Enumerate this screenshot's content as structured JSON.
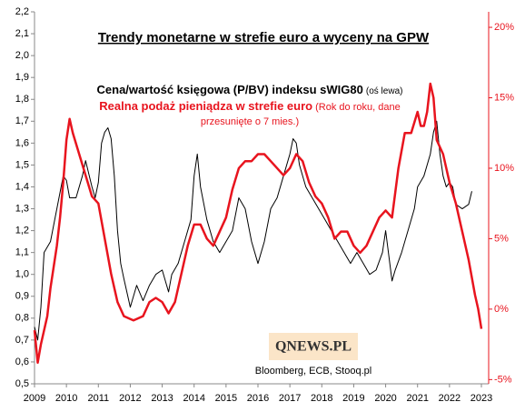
{
  "chart_data": {
    "type": "line",
    "title": "Trendy monetarne w strefie euro a wyceny na GPW",
    "annotations": [
      "(oś lewa)",
      "(Rok do roku, dane",
      "przesunięte o 7 mies.)"
    ],
    "logo": "QNEWS.PL",
    "source": "Bloomberg, ECB, Stooq.pl",
    "xlim": [
      2009,
      2023
    ],
    "xticks": [
      2009,
      2010,
      2011,
      2012,
      2013,
      2014,
      2015,
      2016,
      2017,
      2018,
      2019,
      2020,
      2021,
      2022,
      2023
    ],
    "ylim": [
      0.5,
      2.2
    ],
    "yticks": [
      {
        "value": 0.5,
        "label": "0,5"
      },
      {
        "value": 0.6,
        "label": "0,6"
      },
      {
        "value": 0.7,
        "label": "0,7"
      },
      {
        "value": 0.8,
        "label": "0,8"
      },
      {
        "value": 0.9,
        "label": "0,9"
      },
      {
        "value": 1.0,
        "label": "1,0"
      },
      {
        "value": 1.1,
        "label": "1,1"
      },
      {
        "value": 1.2,
        "label": "1,2"
      },
      {
        "value": 1.3,
        "label": "1,3"
      },
      {
        "value": 1.4,
        "label": "1,4"
      },
      {
        "value": 1.5,
        "label": "1,5"
      },
      {
        "value": 1.6,
        "label": "1,6"
      },
      {
        "value": 1.7,
        "label": "1,7"
      },
      {
        "value": 1.8,
        "label": "1,8"
      },
      {
        "value": 1.9,
        "label": "1,9"
      },
      {
        "value": 2.0,
        "label": "2,0"
      },
      {
        "value": 2.1,
        "label": "2,1"
      },
      {
        "value": 2.2,
        "label": "2,2"
      }
    ],
    "y2lim": [
      -5.3,
      21.1
    ],
    "y2ticks": [
      {
        "value": -5,
        "label": "-5%"
      },
      {
        "value": 0,
        "label": "0%"
      },
      {
        "value": 5,
        "label": "5%"
      },
      {
        "value": 10,
        "label": "10%"
      },
      {
        "value": 15,
        "label": "15%"
      },
      {
        "value": 20,
        "label": "20%"
      }
    ],
    "series": [
      {
        "name": "Cena/wartość księgowa (P/BV) indeksu sWIG80",
        "color": "#000000",
        "axis": "y",
        "x": [
          2009.0,
          2009.1,
          2009.2,
          2009.3,
          2009.5,
          2009.7,
          2009.9,
          2010.0,
          2010.1,
          2010.3,
          2010.5,
          2010.6,
          2010.8,
          2010.9,
          2011.0,
          2011.1,
          2011.2,
          2011.3,
          2011.4,
          2011.5,
          2011.6,
          2011.7,
          2011.8,
          2012.0,
          2012.2,
          2012.4,
          2012.6,
          2012.8,
          2013.0,
          2013.2,
          2013.3,
          2013.5,
          2013.7,
          2013.9,
          2014.0,
          2014.1,
          2014.2,
          2014.4,
          2014.6,
          2014.8,
          2015.0,
          2015.2,
          2015.4,
          2015.6,
          2015.8,
          2016.0,
          2016.2,
          2016.4,
          2016.6,
          2016.8,
          2017.0,
          2017.1,
          2017.2,
          2017.3,
          2017.5,
          2017.7,
          2017.9,
          2018.1,
          2018.3,
          2018.5,
          2018.7,
          2018.9,
          2019.1,
          2019.3,
          2019.5,
          2019.7,
          2019.9,
          2020.0,
          2020.2,
          2020.3,
          2020.5,
          2020.7,
          2020.9,
          2021.0,
          2021.2,
          2021.4,
          2021.5,
          2021.6,
          2021.7,
          2021.8,
          2021.9,
          2022.0,
          2022.1,
          2022.2,
          2022.4,
          2022.6,
          2022.7
        ],
        "values": [
          0.76,
          0.7,
          0.85,
          1.1,
          1.15,
          1.3,
          1.45,
          1.43,
          1.35,
          1.35,
          1.45,
          1.52,
          1.4,
          1.35,
          1.42,
          1.6,
          1.65,
          1.67,
          1.62,
          1.45,
          1.2,
          1.05,
          0.98,
          0.85,
          0.95,
          0.88,
          0.95,
          1.0,
          1.02,
          0.92,
          1.0,
          1.05,
          1.15,
          1.25,
          1.45,
          1.55,
          1.4,
          1.25,
          1.15,
          1.1,
          1.15,
          1.2,
          1.35,
          1.3,
          1.15,
          1.05,
          1.15,
          1.3,
          1.35,
          1.45,
          1.55,
          1.62,
          1.6,
          1.5,
          1.4,
          1.35,
          1.3,
          1.25,
          1.2,
          1.15,
          1.1,
          1.05,
          1.1,
          1.05,
          1.0,
          1.02,
          1.1,
          1.2,
          0.97,
          1.02,
          1.1,
          1.2,
          1.3,
          1.4,
          1.45,
          1.55,
          1.65,
          1.7,
          1.55,
          1.45,
          1.4,
          1.42,
          1.4,
          1.32,
          1.3,
          1.32,
          1.38
        ]
      },
      {
        "name": "Realna podaż pieniądza w strefie euro",
        "color": "#e8141e",
        "axis": "y2",
        "x": [
          2009.0,
          2009.1,
          2009.2,
          2009.4,
          2009.5,
          2009.7,
          2009.8,
          2009.9,
          2010.0,
          2010.1,
          2010.2,
          2010.4,
          2010.6,
          2010.8,
          2011.0,
          2011.2,
          2011.4,
          2011.6,
          2011.8,
          2012.0,
          2012.1,
          2012.2,
          2012.4,
          2012.6,
          2012.8,
          2013.0,
          2013.2,
          2013.4,
          2013.6,
          2013.8,
          2014.0,
          2014.2,
          2014.4,
          2014.6,
          2014.8,
          2015.0,
          2015.2,
          2015.4,
          2015.6,
          2015.8,
          2016.0,
          2016.2,
          2016.4,
          2016.6,
          2016.8,
          2017.0,
          2017.2,
          2017.4,
          2017.6,
          2017.8,
          2018.0,
          2018.2,
          2018.4,
          2018.6,
          2018.8,
          2019.0,
          2019.2,
          2019.4,
          2019.6,
          2019.8,
          2020.0,
          2020.2,
          2020.4,
          2020.6,
          2020.8,
          2021.0,
          2021.1,
          2021.2,
          2021.3,
          2021.4,
          2021.5,
          2021.6,
          2021.8,
          2022.0,
          2022.2,
          2022.4,
          2022.6,
          2022.8,
          2022.9,
          2023.0
        ],
        "values": [
          -1.5,
          -3.8,
          -2.5,
          -0.5,
          1.5,
          4.5,
          6.5,
          9.0,
          12.0,
          13.5,
          12.5,
          11.0,
          9.5,
          8.0,
          7.5,
          5.0,
          2.5,
          0.5,
          -0.5,
          -0.7,
          -0.8,
          -0.7,
          -0.5,
          0.5,
          0.8,
          0.5,
          -0.3,
          0.5,
          2.5,
          4.5,
          6.0,
          6.0,
          5.0,
          4.5,
          5.5,
          6.5,
          8.5,
          10.0,
          10.5,
          10.5,
          11.0,
          11.0,
          10.5,
          10.0,
          9.5,
          10.0,
          11.0,
          10.5,
          9.0,
          8.0,
          7.5,
          6.5,
          5.0,
          5.5,
          5.5,
          4.5,
          4.0,
          4.5,
          5.5,
          6.5,
          7.0,
          6.5,
          10.0,
          12.5,
          12.5,
          14.0,
          13.0,
          13.0,
          14.0,
          16.0,
          15.0,
          12.0,
          11.0,
          9.0,
          7.5,
          5.5,
          3.5,
          1.0,
          0.0,
          -1.4
        ]
      }
    ]
  }
}
